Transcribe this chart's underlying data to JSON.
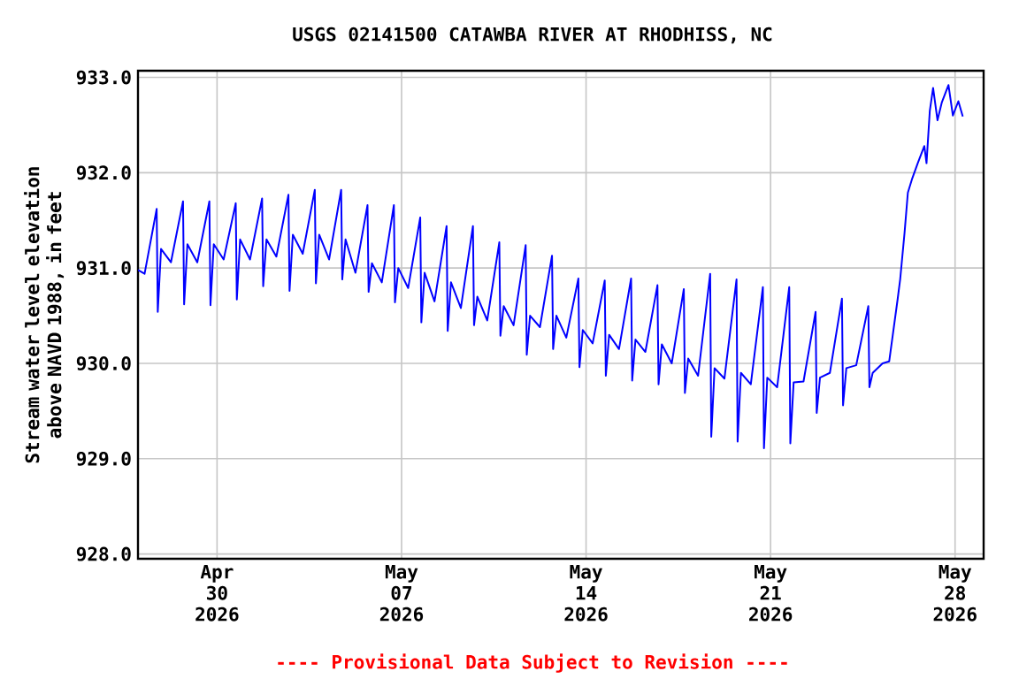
{
  "chart_data": {
    "type": "line",
    "title": "USGS 02141500 CATAWBA RIVER AT RHODHISS, NC",
    "ylabel": "Stream water level elevation above NAVD 1988, in feet",
    "annotations": [
      "---- Provisional Data Subject to Revision ----"
    ],
    "color": "#0000ff",
    "grid": true,
    "xlim": [
      "2026-04-27T00:00",
      "2026-05-29T02:00"
    ],
    "xticks": [
      {
        "value": "2026-04-30",
        "label": "Apr 30 2026"
      },
      {
        "value": "2026-05-07",
        "label": "May 07 2026"
      },
      {
        "value": "2026-05-14",
        "label": "May 14 2026"
      },
      {
        "value": "2026-05-21",
        "label": "May 21 2026"
      },
      {
        "value": "2026-05-28",
        "label": "May 28 2026"
      }
    ],
    "ylim": [
      927.95,
      933.07
    ],
    "yticks": [
      {
        "value": 928,
        "label": "928.0"
      },
      {
        "value": 929,
        "label": "929.0"
      },
      {
        "value": 930,
        "label": "930.0"
      },
      {
        "value": 931,
        "label": "931.0"
      },
      {
        "value": 932,
        "label": "932.0"
      },
      {
        "value": 933,
        "label": "933.0"
      }
    ],
    "x": [
      "2026-04-27T00:00",
      "2026-04-27T06:00",
      "2026-04-27T17:00",
      "2026-04-27T18:00",
      "2026-04-27T21:00",
      "2026-04-28T06:00",
      "2026-04-28T17:00",
      "2026-04-28T18:00",
      "2026-04-28T21:00",
      "2026-04-29T06:00",
      "2026-04-29T17:00",
      "2026-04-29T18:00",
      "2026-04-29T21:00",
      "2026-04-30T06:00",
      "2026-04-30T17:00",
      "2026-04-30T18:00",
      "2026-04-30T21:00",
      "2026-05-01T06:00",
      "2026-05-01T17:00",
      "2026-05-01T18:00",
      "2026-05-01T21:00",
      "2026-05-02T06:00",
      "2026-05-02T17:00",
      "2026-05-02T18:00",
      "2026-05-02T21:00",
      "2026-05-03T06:00",
      "2026-05-03T17:00",
      "2026-05-03T18:00",
      "2026-05-03T21:00",
      "2026-05-04T06:00",
      "2026-05-04T17:00",
      "2026-05-04T18:00",
      "2026-05-04T21:00",
      "2026-05-05T06:00",
      "2026-05-05T17:00",
      "2026-05-05T18:00",
      "2026-05-05T21:00",
      "2026-05-06T06:00",
      "2026-05-06T17:00",
      "2026-05-06T18:00",
      "2026-05-06T21:00",
      "2026-05-07T06:00",
      "2026-05-07T17:00",
      "2026-05-07T18:00",
      "2026-05-07T21:00",
      "2026-05-08T06:00",
      "2026-05-08T17:00",
      "2026-05-08T18:00",
      "2026-05-08T21:00",
      "2026-05-09T06:00",
      "2026-05-09T17:00",
      "2026-05-09T18:00",
      "2026-05-09T21:00",
      "2026-05-10T06:00",
      "2026-05-10T17:00",
      "2026-05-10T18:00",
      "2026-05-10T21:00",
      "2026-05-11T06:00",
      "2026-05-11T17:00",
      "2026-05-11T18:00",
      "2026-05-11T21:00",
      "2026-05-12T06:00",
      "2026-05-12T17:00",
      "2026-05-12T18:00",
      "2026-05-12T21:00",
      "2026-05-13T06:00",
      "2026-05-13T17:00",
      "2026-05-13T18:00",
      "2026-05-13T21:00",
      "2026-05-14T06:00",
      "2026-05-14T17:00",
      "2026-05-14T18:00",
      "2026-05-14T21:00",
      "2026-05-15T06:00",
      "2026-05-15T17:00",
      "2026-05-15T18:00",
      "2026-05-15T21:00",
      "2026-05-16T06:00",
      "2026-05-16T17:00",
      "2026-05-16T18:00",
      "2026-05-16T21:00",
      "2026-05-17T06:00",
      "2026-05-17T17:00",
      "2026-05-17T18:00",
      "2026-05-17T21:00",
      "2026-05-18T06:00",
      "2026-05-18T17:00",
      "2026-05-18T18:00",
      "2026-05-18T21:00",
      "2026-05-19T06:00",
      "2026-05-19T17:00",
      "2026-05-19T18:00",
      "2026-05-19T21:00",
      "2026-05-20T06:00",
      "2026-05-20T17:00",
      "2026-05-20T18:00",
      "2026-05-20T21:00",
      "2026-05-21T06:00",
      "2026-05-21T17:00",
      "2026-05-21T18:00",
      "2026-05-21T21:00",
      "2026-05-22T06:00",
      "2026-05-22T17:00",
      "2026-05-22T18:00",
      "2026-05-22T21:00",
      "2026-05-23T06:00",
      "2026-05-23T17:00",
      "2026-05-23T18:00",
      "2026-05-23T21:00",
      "2026-05-24T06:00",
      "2026-05-24T17:00",
      "2026-05-24T18:00",
      "2026-05-24T21:00",
      "2026-05-25T06:00",
      "2026-05-25T12:00",
      "2026-05-25T19:40",
      "2026-05-25T22:00",
      "2026-05-26T02:00",
      "2026-05-26T05:00",
      "2026-05-26T09:00",
      "2026-05-26T14:00",
      "2026-05-26T20:00",
      "2026-05-26T22:00",
      "2026-05-27T01:00",
      "2026-05-27T04:00",
      "2026-05-27T08:00",
      "2026-05-27T12:00",
      "2026-05-27T18:00",
      "2026-05-27T22:00",
      "2026-05-28T03:00",
      "2026-05-28T07:00"
    ],
    "values": [
      930.98,
      930.94,
      931.62,
      930.54,
      931.2,
      931.06,
      931.7,
      930.62,
      931.25,
      931.06,
      931.7,
      930.61,
      931.25,
      931.09,
      931.68,
      930.67,
      931.3,
      931.09,
      931.73,
      930.81,
      931.3,
      931.12,
      931.77,
      930.76,
      931.35,
      931.15,
      931.82,
      930.84,
      931.35,
      931.09,
      931.82,
      930.88,
      931.3,
      930.95,
      931.66,
      930.75,
      931.05,
      930.85,
      931.66,
      930.64,
      931.0,
      930.79,
      931.53,
      930.43,
      930.95,
      930.65,
      931.44,
      930.34,
      930.85,
      930.58,
      931.44,
      930.4,
      930.7,
      930.45,
      931.27,
      930.29,
      930.6,
      930.4,
      931.24,
      930.09,
      930.5,
      930.38,
      931.13,
      930.15,
      930.5,
      930.27,
      930.89,
      929.96,
      930.35,
      930.21,
      930.87,
      929.87,
      930.3,
      930.15,
      930.89,
      929.82,
      930.25,
      930.12,
      930.82,
      929.78,
      930.2,
      930.0,
      930.78,
      929.69,
      930.05,
      929.87,
      930.94,
      929.23,
      929.95,
      929.84,
      930.88,
      929.18,
      929.9,
      929.78,
      930.8,
      929.11,
      929.85,
      929.75,
      930.8,
      929.16,
      929.8,
      929.81,
      930.54,
      929.48,
      929.85,
      929.9,
      930.68,
      929.56,
      929.95,
      929.98,
      930.6,
      929.75,
      929.9,
      930.0,
      930.02,
      930.67,
      930.88,
      931.37,
      931.79,
      931.94,
      932.1,
      932.28,
      932.1,
      932.65,
      932.89,
      932.55,
      932.74,
      932.92,
      932.6,
      932.75,
      932.59
    ]
  }
}
